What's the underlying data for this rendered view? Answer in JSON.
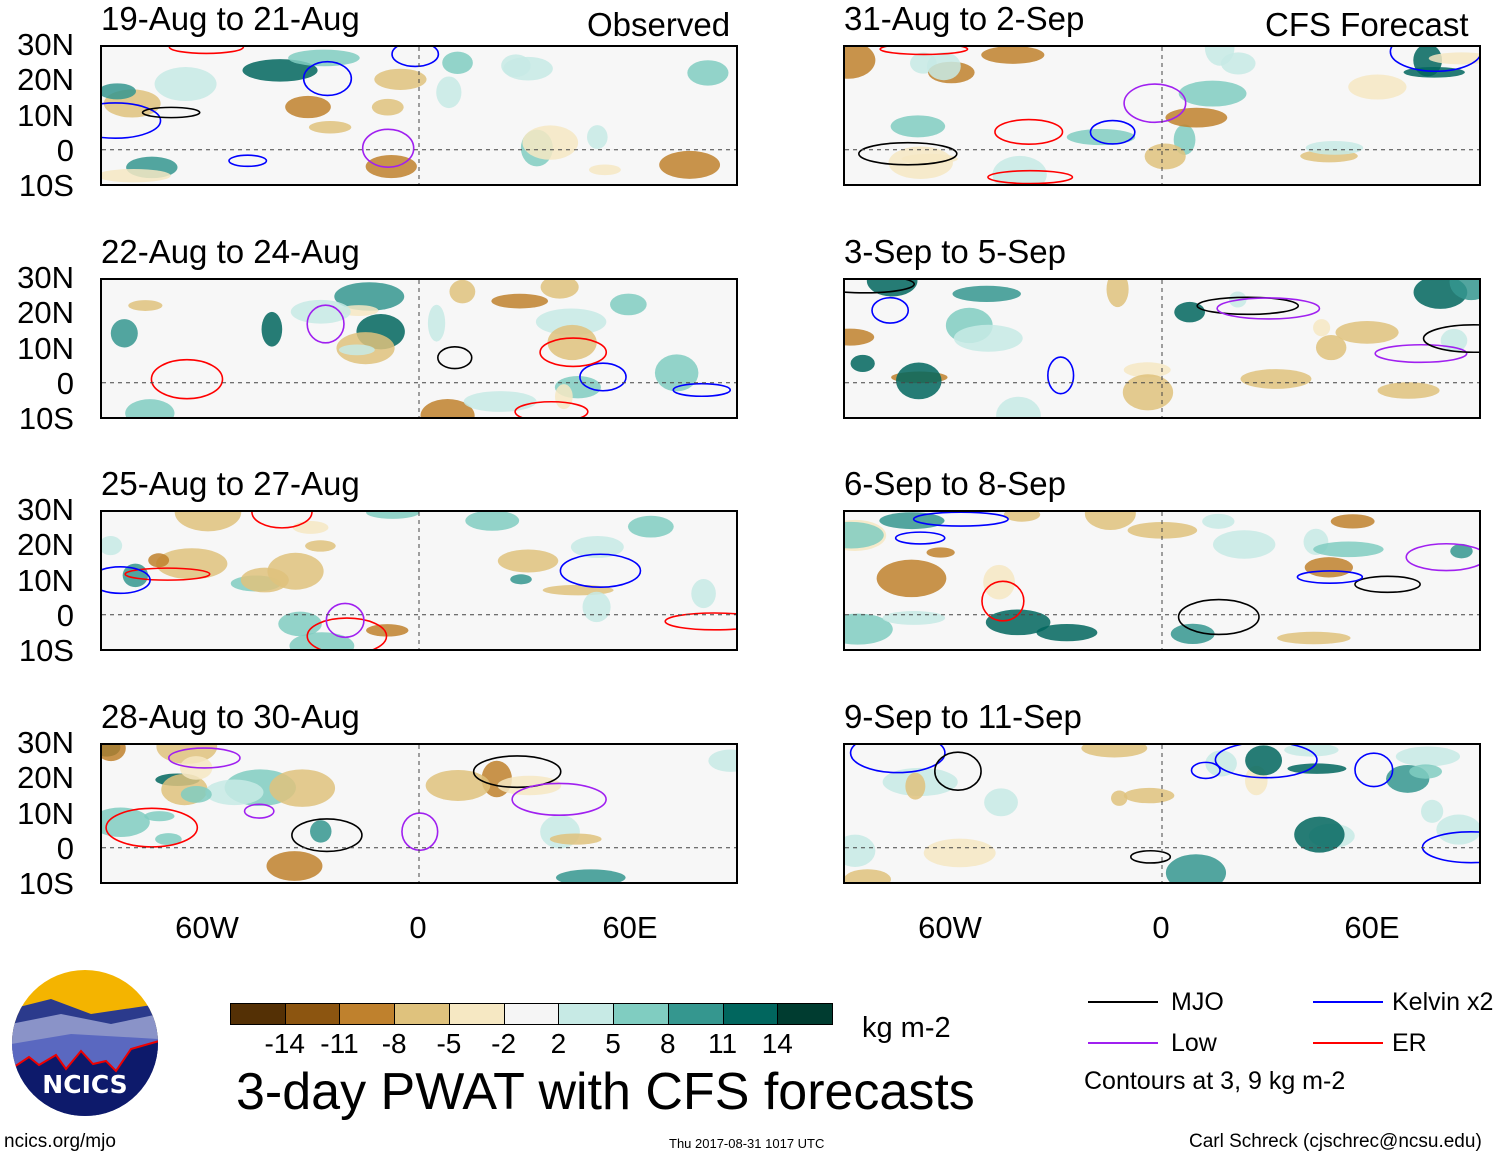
{
  "header": {
    "observed_label": "Observed",
    "forecast_label": "CFS Forecast"
  },
  "panels": {
    "observed": [
      {
        "title": "19-Aug to 21-Aug"
      },
      {
        "title": "22-Aug to 24-Aug"
      },
      {
        "title": "25-Aug to 27-Aug"
      },
      {
        "title": "28-Aug to 30-Aug"
      }
    ],
    "forecast": [
      {
        "title": "31-Aug to 2-Sep"
      },
      {
        "title": "3-Sep to 5-Sep"
      },
      {
        "title": "6-Sep to 8-Sep"
      },
      {
        "title": "9-Sep to 11-Sep"
      }
    ]
  },
  "axes": {
    "lat_labels": [
      "30N",
      "20N",
      "10N",
      "0",
      "10S"
    ],
    "lon_labels": [
      "60W",
      "0",
      "60E"
    ]
  },
  "colorbar": {
    "colors": [
      "#543005",
      "#8c5510",
      "#bf812d",
      "#dfc27d",
      "#f6e8c3",
      "#f5f5f5",
      "#c7eae5",
      "#80cdc1",
      "#35978f",
      "#01665e",
      "#003c30"
    ],
    "labels": [
      "-14",
      "-11",
      "-8",
      "-5",
      "-2",
      "2",
      "5",
      "8",
      "11",
      "14"
    ],
    "units": "kg m-2"
  },
  "title": "3-day PWAT with CFS forecasts",
  "timestamp": "Thu 2017-08-31 1017 UTC",
  "logo": {
    "text": "NCICS"
  },
  "footer": {
    "url": "ncics.org/mjo",
    "credit": "Carl Schreck (cjschrec@ncsu.edu)"
  },
  "legend": {
    "items": [
      {
        "label": "MJO",
        "color": "#000000"
      },
      {
        "label": "Kelvin x2",
        "color": "#0000ff"
      },
      {
        "label": "Low",
        "color": "#a020f0"
      },
      {
        "label": "ER",
        "color": "#ff0000"
      }
    ],
    "note": "Contours at 3, 9 kg m-2"
  }
}
